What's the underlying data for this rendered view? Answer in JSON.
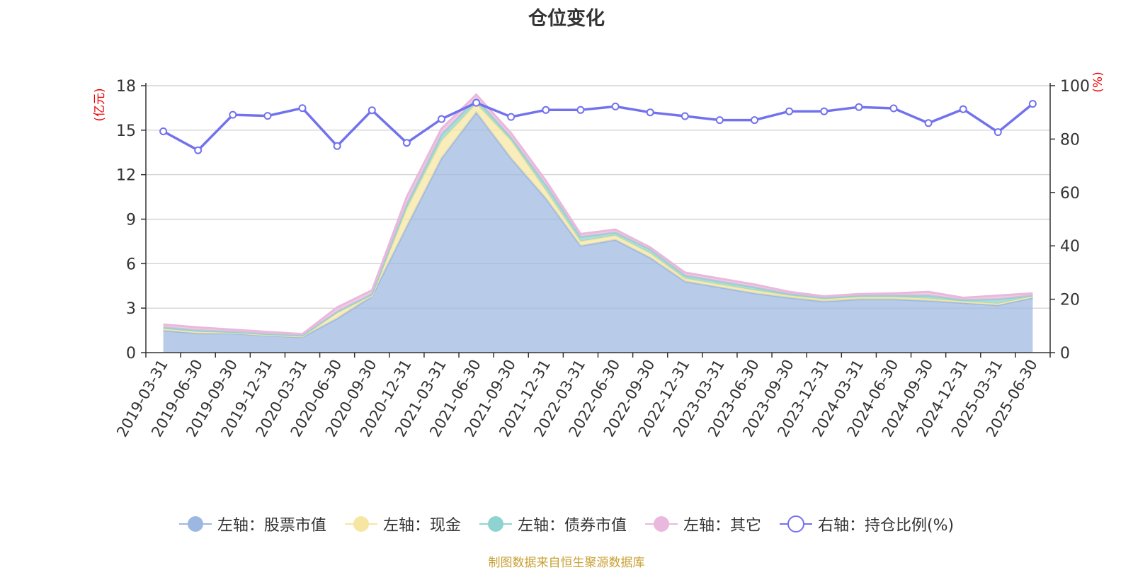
{
  "chart_data": {
    "type": "area",
    "title": "仓位变化",
    "y_left_label": "(亿元)",
    "y_right_label": "(%)",
    "y_left_ticks": [
      "0",
      "3",
      "6",
      "9",
      "12",
      "15",
      "18"
    ],
    "y_right_ticks": [
      "0",
      "20",
      "40",
      "60",
      "80",
      "100"
    ],
    "ylim_left": [
      0,
      18
    ],
    "ylim_right": [
      0,
      100
    ],
    "grid": true,
    "legend_position": "bottom",
    "categories": [
      "2019-03-31",
      "2019-06-30",
      "2019-09-30",
      "2019-12-31",
      "2020-03-31",
      "2020-06-30",
      "2020-09-30",
      "2020-12-31",
      "2021-03-31",
      "2021-06-30",
      "2021-09-30",
      "2021-12-31",
      "2022-03-31",
      "2022-06-30",
      "2022-09-30",
      "2022-12-31",
      "2023-03-31",
      "2023-06-30",
      "2023-09-30",
      "2023-12-31",
      "2024-03-31",
      "2024-06-30",
      "2024-09-30",
      "2024-12-31",
      "2025-03-31",
      "2025-06-30"
    ],
    "series": [
      {
        "name": "左轴：股票市值",
        "type": "area",
        "axis": "left",
        "color": "#9cb8e2",
        "values": [
          1.5,
          1.3,
          1.3,
          1.15,
          1.05,
          2.3,
          3.8,
          8.5,
          13.1,
          16.2,
          13.1,
          10.4,
          7.2,
          7.6,
          6.4,
          4.8,
          4.4,
          4.0,
          3.7,
          3.45,
          3.6,
          3.6,
          3.5,
          3.35,
          3.2,
          3.7
        ]
      },
      {
        "name": "左轴：现金",
        "type": "area",
        "axis": "left",
        "color": "#f7e6a2",
        "values": [
          0.1,
          0.1,
          0.05,
          0.05,
          0.05,
          0.4,
          0.05,
          1.2,
          1.2,
          0.6,
          1.2,
          0.55,
          0.3,
          0.3,
          0.3,
          0.2,
          0.2,
          0.2,
          0.15,
          0.15,
          0.15,
          0.15,
          0.15,
          0.1,
          0.1,
          0.1
        ]
      },
      {
        "name": "左轴：债券市值",
        "type": "area",
        "axis": "left",
        "color": "#8fd3d1",
        "values": [
          0.1,
          0.1,
          0.05,
          0.05,
          0.05,
          0.05,
          0.1,
          0.3,
          0.4,
          0.3,
          0.2,
          0.35,
          0.3,
          0.2,
          0.25,
          0.2,
          0.2,
          0.2,
          0.1,
          0.1,
          0.1,
          0.1,
          0.2,
          0.1,
          0.3,
          0.05
        ]
      },
      {
        "name": "左轴：其它",
        "type": "area",
        "axis": "left",
        "color": "#eab8dc",
        "values": [
          0.2,
          0.2,
          0.15,
          0.15,
          0.1,
          0.3,
          0.25,
          0.5,
          0.4,
          0.3,
          0.3,
          0.3,
          0.2,
          0.2,
          0.15,
          0.2,
          0.2,
          0.2,
          0.15,
          0.1,
          0.1,
          0.15,
          0.25,
          0.15,
          0.25,
          0.15
        ]
      },
      {
        "name": "右轴：持仓比例(%)",
        "type": "line",
        "axis": "right",
        "color": "#7272ee",
        "values": [
          82.9,
          75.8,
          89.1,
          88.7,
          91.6,
          77.4,
          90.8,
          78.6,
          87.5,
          93.6,
          88.3,
          90.9,
          90.9,
          92.2,
          90.0,
          88.6,
          87.1,
          87.1,
          90.4,
          90.4,
          92.0,
          91.5,
          86.0,
          91.2,
          82.6,
          93.2
        ]
      }
    ]
  },
  "source_note": "制图数据来自恒生聚源数据库"
}
